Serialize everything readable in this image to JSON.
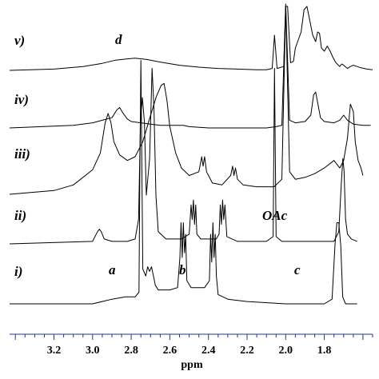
{
  "chart_data": {
    "type": "line",
    "title": "",
    "xlabel": "ppm",
    "ylabel": "",
    "xlim": [
      3.43,
      1.55
    ],
    "x_reversed": true,
    "grid": false,
    "legend": "none",
    "x_ticks": [
      "3.2",
      "3.0",
      "2.8",
      "2.6",
      "2.4",
      "2.2",
      "2.0",
      "1.8"
    ],
    "series": [
      {
        "name": "i)",
        "points": [
          [
            3.43,
            0.0
          ],
          [
            3.0,
            0.0
          ],
          [
            2.9,
            0.02
          ],
          [
            2.83,
            0.03
          ],
          [
            2.78,
            0.03
          ],
          [
            2.76,
            0.05
          ],
          [
            2.755,
            0.6
          ],
          [
            2.75,
            1.05
          ],
          [
            2.745,
            0.6
          ],
          [
            2.74,
            0.15
          ],
          [
            2.725,
            0.12
          ],
          [
            2.715,
            0.16
          ],
          [
            2.705,
            0.14
          ],
          [
            2.695,
            0.16
          ],
          [
            2.685,
            0.12
          ],
          [
            2.675,
            0.08
          ],
          [
            2.66,
            0.06
          ],
          [
            2.6,
            0.06
          ],
          [
            2.56,
            0.07
          ],
          [
            2.548,
            0.2
          ],
          [
            2.542,
            0.35
          ],
          [
            2.536,
            0.2
          ],
          [
            2.53,
            0.35
          ],
          [
            2.524,
            0.22
          ],
          [
            2.518,
            0.3
          ],
          [
            2.512,
            0.1
          ],
          [
            2.49,
            0.07
          ],
          [
            2.42,
            0.07
          ],
          [
            2.395,
            0.1
          ],
          [
            2.389,
            0.3
          ],
          [
            2.383,
            0.18
          ],
          [
            2.377,
            0.35
          ],
          [
            2.371,
            0.2
          ],
          [
            2.365,
            0.3
          ],
          [
            2.359,
            0.12
          ],
          [
            2.35,
            0.04
          ],
          [
            2.3,
            0.02
          ],
          [
            2.2,
            0.01
          ],
          [
            2.0,
            0.0
          ],
          [
            1.8,
            0.0
          ],
          [
            1.76,
            0.02
          ],
          [
            1.745,
            0.25
          ],
          [
            1.735,
            0.35
          ],
          [
            1.725,
            0.35
          ],
          [
            1.715,
            0.25
          ],
          [
            1.705,
            0.03
          ],
          [
            1.69,
            0.0
          ],
          [
            1.63,
            0.0
          ]
        ]
      },
      {
        "name": "ii)",
        "points": [
          [
            3.43,
            0.0
          ],
          [
            3.0,
            0.01
          ],
          [
            2.975,
            0.05
          ],
          [
            2.965,
            0.06
          ],
          [
            2.955,
            0.05
          ],
          [
            2.94,
            0.02
          ],
          [
            2.9,
            0.01
          ],
          [
            2.82,
            0.01
          ],
          [
            2.78,
            0.02
          ],
          [
            2.762,
            0.1
          ],
          [
            2.752,
            0.5
          ],
          [
            2.742,
            0.6
          ],
          [
            2.732,
            0.5
          ],
          [
            2.722,
            0.2
          ],
          [
            2.705,
            0.35
          ],
          [
            2.692,
            0.72
          ],
          [
            2.682,
            0.55
          ],
          [
            2.672,
            0.2
          ],
          [
            2.66,
            0.05
          ],
          [
            2.62,
            0.02
          ],
          [
            2.54,
            0.02
          ],
          [
            2.5,
            0.04
          ],
          [
            2.49,
            0.16
          ],
          [
            2.484,
            0.1
          ],
          [
            2.478,
            0.18
          ],
          [
            2.472,
            0.08
          ],
          [
            2.466,
            0.16
          ],
          [
            2.46,
            0.04
          ],
          [
            2.44,
            0.02
          ],
          [
            2.36,
            0.02
          ],
          [
            2.345,
            0.04
          ],
          [
            2.339,
            0.16
          ],
          [
            2.333,
            0.08
          ],
          [
            2.327,
            0.18
          ],
          [
            2.321,
            0.1
          ],
          [
            2.315,
            0.16
          ],
          [
            2.305,
            0.03
          ],
          [
            2.25,
            0.01
          ],
          [
            2.1,
            0.01
          ],
          [
            2.065,
            0.03
          ],
          [
            2.058,
            0.72
          ],
          [
            2.05,
            0.03
          ],
          [
            2.02,
            0.01
          ],
          [
            1.75,
            0.01
          ],
          [
            1.725,
            0.05
          ],
          [
            1.712,
            0.25
          ],
          [
            1.704,
            0.35
          ],
          [
            1.698,
            0.3
          ],
          [
            1.69,
            0.1
          ],
          [
            1.68,
            0.04
          ],
          [
            1.66,
            0.02
          ],
          [
            1.63,
            0.01
          ]
        ]
      },
      {
        "name": "iii)",
        "points": [
          [
            3.43,
            0.0
          ],
          [
            3.2,
            0.02
          ],
          [
            3.1,
            0.05
          ],
          [
            3.0,
            0.13
          ],
          [
            2.96,
            0.22
          ],
          [
            2.935,
            0.38
          ],
          [
            2.92,
            0.43
          ],
          [
            2.905,
            0.38
          ],
          [
            2.89,
            0.28
          ],
          [
            2.86,
            0.21
          ],
          [
            2.82,
            0.18
          ],
          [
            2.78,
            0.2
          ],
          [
            2.74,
            0.28
          ],
          [
            2.7,
            0.42
          ],
          [
            2.67,
            0.52
          ],
          [
            2.645,
            0.58
          ],
          [
            2.63,
            0.59
          ],
          [
            2.615,
            0.5
          ],
          [
            2.6,
            0.36
          ],
          [
            2.57,
            0.22
          ],
          [
            2.54,
            0.14
          ],
          [
            2.5,
            0.1
          ],
          [
            2.45,
            0.12
          ],
          [
            2.435,
            0.2
          ],
          [
            2.428,
            0.15
          ],
          [
            2.42,
            0.2
          ],
          [
            2.41,
            0.12
          ],
          [
            2.38,
            0.06
          ],
          [
            2.33,
            0.05
          ],
          [
            2.285,
            0.1
          ],
          [
            2.275,
            0.15
          ],
          [
            2.268,
            0.1
          ],
          [
            2.26,
            0.14
          ],
          [
            2.25,
            0.08
          ],
          [
            2.22,
            0.05
          ],
          [
            2.15,
            0.04
          ],
          [
            2.1,
            0.04
          ],
          [
            2.06,
            0.04
          ],
          [
            2.02,
            0.08
          ],
          [
            2.0,
            1.0
          ],
          [
            1.98,
            0.12
          ],
          [
            1.95,
            0.08
          ],
          [
            1.9,
            0.09
          ],
          [
            1.85,
            0.11
          ],
          [
            1.8,
            0.14
          ],
          [
            1.75,
            0.18
          ],
          [
            1.72,
            0.14
          ],
          [
            1.7,
            0.18
          ],
          [
            1.68,
            0.3
          ],
          [
            1.665,
            0.48
          ],
          [
            1.65,
            0.44
          ],
          [
            1.64,
            0.28
          ],
          [
            1.625,
            0.18
          ],
          [
            1.61,
            0.14
          ],
          [
            1.6,
            0.1
          ]
        ]
      },
      {
        "name": "iv)",
        "points": [
          [
            3.43,
            0.0
          ],
          [
            3.1,
            0.02
          ],
          [
            3.0,
            0.04
          ],
          [
            2.95,
            0.06
          ],
          [
            2.9,
            0.08
          ],
          [
            2.875,
            0.14
          ],
          [
            2.86,
            0.16
          ],
          [
            2.845,
            0.12
          ],
          [
            2.82,
            0.07
          ],
          [
            2.8,
            0.05
          ],
          [
            2.75,
            0.04
          ],
          [
            2.7,
            0.03
          ],
          [
            2.65,
            0.02
          ],
          [
            2.6,
            0.02
          ],
          [
            2.53,
            0.02
          ],
          [
            2.5,
            0.01
          ],
          [
            2.4,
            0.0
          ],
          [
            2.3,
            0.0
          ],
          [
            2.2,
            0.0
          ],
          [
            2.1,
            0.0
          ],
          [
            2.05,
            0.01
          ],
          [
            2.02,
            0.02
          ],
          [
            2.0,
            1.0
          ],
          [
            1.98,
            0.06
          ],
          [
            1.95,
            0.04
          ],
          [
            1.9,
            0.05
          ],
          [
            1.87,
            0.1
          ],
          [
            1.855,
            0.26
          ],
          [
            1.845,
            0.28
          ],
          [
            1.835,
            0.2
          ],
          [
            1.82,
            0.08
          ],
          [
            1.8,
            0.05
          ],
          [
            1.75,
            0.04
          ],
          [
            1.72,
            0.06
          ],
          [
            1.7,
            0.1
          ],
          [
            1.68,
            0.06
          ],
          [
            1.65,
            0.03
          ],
          [
            1.6,
            0.02
          ],
          [
            1.56,
            0.02
          ]
        ]
      },
      {
        "name": "v)",
        "points": [
          [
            3.43,
            0.0
          ],
          [
            3.2,
            0.02
          ],
          [
            3.05,
            0.06
          ],
          [
            2.95,
            0.11
          ],
          [
            2.88,
            0.16
          ],
          [
            2.82,
            0.18
          ],
          [
            2.78,
            0.19
          ],
          [
            2.72,
            0.17
          ],
          [
            2.65,
            0.13
          ],
          [
            2.55,
            0.08
          ],
          [
            2.45,
            0.05
          ],
          [
            2.35,
            0.03
          ],
          [
            2.25,
            0.02
          ],
          [
            2.15,
            0.01
          ],
          [
            2.1,
            0.01
          ],
          [
            2.07,
            0.03
          ],
          [
            2.058,
            0.55
          ],
          [
            2.045,
            0.03
          ],
          [
            2.01,
            0.06
          ],
          [
            2.0,
            1.0
          ],
          [
            1.99,
            1.0
          ],
          [
            1.975,
            0.12
          ],
          [
            1.96,
            0.14
          ],
          [
            1.95,
            0.35
          ],
          [
            1.92,
            0.6
          ],
          [
            1.905,
            0.95
          ],
          [
            1.89,
            1.0
          ],
          [
            1.88,
            0.85
          ],
          [
            1.86,
            0.55
          ],
          [
            1.845,
            0.45
          ],
          [
            1.835,
            0.6
          ],
          [
            1.825,
            0.58
          ],
          [
            1.815,
            0.35
          ],
          [
            1.8,
            0.3
          ],
          [
            1.785,
            0.38
          ],
          [
            1.77,
            0.3
          ],
          [
            1.755,
            0.2
          ],
          [
            1.74,
            0.12
          ],
          [
            1.72,
            0.06
          ],
          [
            1.71,
            0.1
          ],
          [
            1.7,
            0.08
          ],
          [
            1.68,
            0.03
          ],
          [
            1.665,
            0.06
          ],
          [
            1.65,
            0.08
          ],
          [
            1.63,
            0.06
          ],
          [
            1.61,
            0.04
          ],
          [
            1.58,
            0.02
          ],
          [
            1.55,
            0.01
          ]
        ]
      }
    ],
    "annotations": [
      {
        "text": "a",
        "x": 2.77
      },
      {
        "text": "b",
        "x": 2.45
      },
      {
        "text": "c",
        "x": 1.775
      },
      {
        "text": "d",
        "x": 2.765
      },
      {
        "text": "OAc",
        "x": 2.03
      }
    ]
  }
}
